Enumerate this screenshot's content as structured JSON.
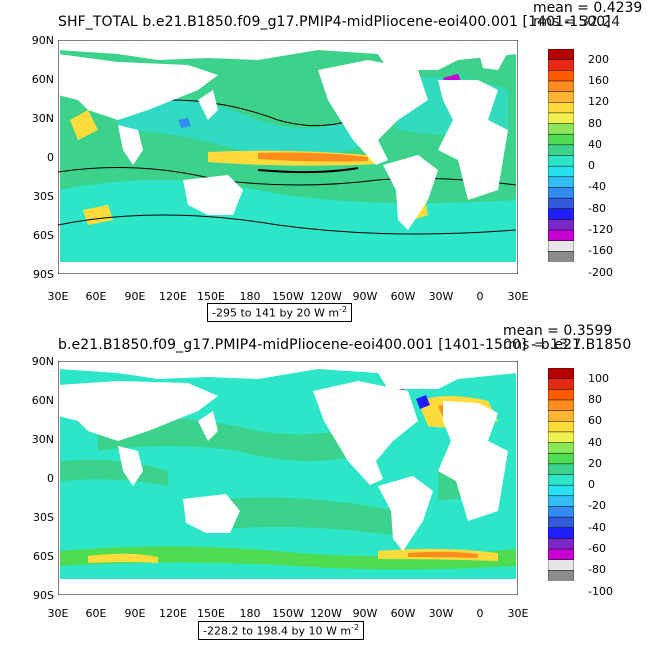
{
  "panels": [
    {
      "title": "SHF_TOTAL b.e21.B1850.f09_g17.PMIP4-midPliocene-eoi400.001 [1401-1500]",
      "mean": "mean = 0.4239",
      "rms": "rms = 32.24",
      "range_label": "-295 to 141 by 20  W m",
      "range_exp": "-2",
      "lat_labels": [
        "90N",
        "60N",
        "30N",
        "0",
        "30S",
        "60S",
        "90S"
      ],
      "lon_labels": [
        "30E",
        "60E",
        "90E",
        "120E",
        "150E",
        "180",
        "150W",
        "120W",
        "90W",
        "60W",
        "30W",
        "0",
        "30E"
      ],
      "colorbar_labels": [
        "200",
        "160",
        "120",
        "80",
        "40",
        "0",
        "-40",
        "-80",
        "-120",
        "-160",
        "-200"
      ],
      "colorbar_colors": [
        "#b40000",
        "#e62814",
        "#ff5a00",
        "#ff8c1e",
        "#ffb432",
        "#ffdc3c",
        "#f0f050",
        "#8ce65a",
        "#50dc50",
        "#3cd28c",
        "#2de6c8",
        "#28e1f0",
        "#32bef5",
        "#328cf0",
        "#325adc",
        "#1e1eff",
        "#7828c8",
        "#c800d2",
        "#e6e6e6",
        "#8c8c8c"
      ]
    },
    {
      "title": "b.e21.B1850.f09_g17.PMIP4-midPliocene-eoi400.001 [1401-1500] - b.e21.B1850",
      "mean": "mean = 0.3599",
      "rms": "rms = 13.7",
      "range_label": "-228.2 to 198.4 by 10  W m",
      "range_exp": "-2",
      "lat_labels": [
        "90N",
        "60N",
        "30N",
        "0",
        "30S",
        "60S",
        "90S"
      ],
      "lon_labels": [
        "30E",
        "60E",
        "90E",
        "120E",
        "150E",
        "180",
        "150W",
        "120W",
        "90W",
        "60W",
        "30W",
        "0",
        "30E"
      ],
      "colorbar_labels": [
        "100",
        "80",
        "60",
        "40",
        "20",
        "0",
        "-20",
        "-40",
        "-60",
        "-80",
        "-100"
      ],
      "colorbar_colors": [
        "#b40000",
        "#e62814",
        "#ff5a00",
        "#ff8c1e",
        "#ffb432",
        "#ffdc3c",
        "#f0f050",
        "#8ce65a",
        "#50dc50",
        "#3cd28c",
        "#2de6c8",
        "#28e1f0",
        "#32bef5",
        "#328cf0",
        "#325adc",
        "#1e1eff",
        "#7828c8",
        "#c800d2",
        "#e6e6e6",
        "#8c8c8c"
      ]
    }
  ],
  "chart_data": [
    {
      "type": "heatmap",
      "title": "SHF_TOTAL b.e21.B1850.f09_g17.PMIP4-midPliocene-eoi400.001 [1401-1500]",
      "xlabel": "",
      "ylabel": "",
      "x_ticks": [
        "30E",
        "60E",
        "90E",
        "120E",
        "150E",
        "180",
        "150W",
        "120W",
        "90W",
        "60W",
        "30W",
        "0",
        "30E"
      ],
      "y_ticks": [
        "90N",
        "60N",
        "30N",
        "0",
        "30S",
        "60S",
        "90S"
      ],
      "contour_range": "-295 to 141 by 20 W m-2",
      "mean": 0.4239,
      "rms": 32.24,
      "colorbar": [
        -200,
        -160,
        -120,
        -80,
        -40,
        0,
        40,
        80,
        120,
        160,
        200
      ],
      "grid": false
    },
    {
      "type": "heatmap",
      "title": "b.e21.B1850.f09_g17.PMIP4-midPliocene-eoi400.001 [1401-1500] - b.e21.B1850",
      "xlabel": "",
      "ylabel": "",
      "x_ticks": [
        "30E",
        "60E",
        "90E",
        "120E",
        "150E",
        "180",
        "150W",
        "120W",
        "90W",
        "60W",
        "30W",
        "0",
        "30E"
      ],
      "y_ticks": [
        "90N",
        "60N",
        "30N",
        "0",
        "30S",
        "60S",
        "90S"
      ],
      "contour_range": "-228.2 to 198.4 by 10 W m-2",
      "mean": 0.3599,
      "rms": 13.7,
      "colorbar": [
        -100,
        -80,
        -60,
        -40,
        -20,
        0,
        20,
        40,
        60,
        80,
        100
      ],
      "grid": false
    }
  ]
}
